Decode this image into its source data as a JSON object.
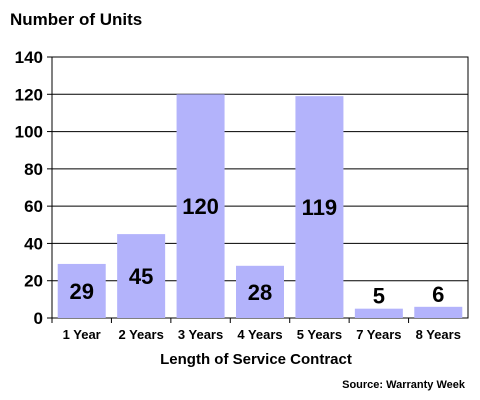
{
  "chart_data": {
    "type": "bar",
    "title": "Number of Units",
    "xlabel": "Length of Service Contract",
    "ylabel": "",
    "source": "Source: Warranty Week",
    "categories": [
      "1 Year",
      "2 Years",
      "3 Years",
      "4 Years",
      "5 Years",
      "7 Years",
      "8 Years"
    ],
    "values": [
      29,
      45,
      120,
      28,
      119,
      5,
      6
    ],
    "data_labels": [
      "29",
      "45",
      "120",
      "28",
      "119",
      "5",
      "6"
    ],
    "yticks": [
      "0",
      "20",
      "40",
      "60",
      "80",
      "100",
      "120",
      "140"
    ],
    "ylim": [
      0,
      140
    ],
    "grid": true,
    "bar_color": "#b3b3fb",
    "legend": "none"
  }
}
